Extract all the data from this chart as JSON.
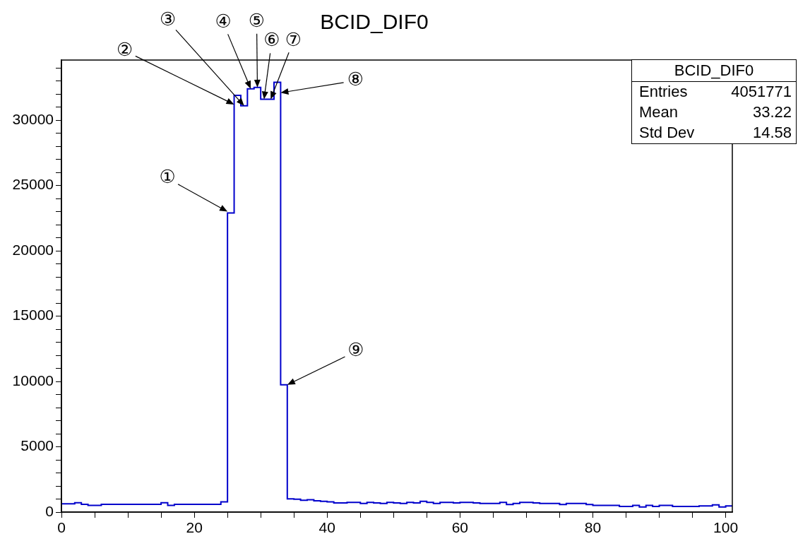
{
  "chart_data": {
    "type": "histogram",
    "title": "BCID_DIF0",
    "bins": [
      0,
      1,
      2,
      3,
      4,
      5,
      6,
      7,
      8,
      9,
      10,
      11,
      12,
      13,
      14,
      15,
      16,
      17,
      18,
      19,
      20,
      21,
      22,
      23,
      24,
      25,
      26,
      27,
      28,
      29,
      30,
      31,
      32,
      33,
      34,
      35,
      36,
      37,
      38,
      39,
      40,
      41,
      42,
      43,
      44,
      45,
      46,
      47,
      48,
      49,
      50,
      51,
      52,
      53,
      54,
      55,
      56,
      57,
      58,
      59,
      60,
      61,
      62,
      63,
      64,
      65,
      66,
      67,
      68,
      69,
      70,
      71,
      72,
      73,
      74,
      75,
      76,
      77,
      78,
      79,
      80,
      81,
      82,
      83,
      84,
      85,
      86,
      87,
      88,
      89,
      90,
      91,
      92,
      93,
      94,
      95,
      96,
      97,
      98,
      99,
      100,
      101
    ],
    "values": [
      630,
      630,
      710,
      590,
      510,
      510,
      590,
      590,
      590,
      590,
      590,
      590,
      590,
      590,
      590,
      710,
      510,
      590,
      590,
      590,
      590,
      590,
      590,
      590,
      790,
      22900,
      31900,
      31100,
      32400,
      32500,
      31600,
      31600,
      32900,
      9750,
      1020,
      980,
      900,
      940,
      870,
      830,
      790,
      700,
      700,
      740,
      740,
      660,
      740,
      700,
      660,
      740,
      700,
      660,
      740,
      700,
      820,
      740,
      660,
      740,
      740,
      700,
      740,
      740,
      700,
      660,
      660,
      660,
      740,
      580,
      660,
      740,
      740,
      700,
      660,
      660,
      660,
      580,
      660,
      660,
      660,
      580,
      510,
      510,
      510,
      510,
      430,
      430,
      510,
      390,
      510,
      430,
      510,
      510,
      430,
      430,
      430,
      430,
      470,
      470,
      550,
      390,
      470
    ],
    "color": "#0000cc",
    "xlim": [
      0,
      101
    ],
    "xticks": [
      0,
      {
        "value": 5,
        "label": null
      },
      {
        "value": 10,
        "label": null
      },
      {
        "value": 15,
        "label": null
      },
      20,
      {
        "value": 25,
        "label": null
      },
      {
        "value": 30,
        "label": null
      },
      {
        "value": 35,
        "label": null
      },
      40,
      {
        "value": 45,
        "label": null
      },
      {
        "value": 50,
        "label": null
      },
      {
        "value": 55,
        "label": null
      },
      60,
      {
        "value": 65,
        "label": null
      },
      {
        "value": 70,
        "label": null
      },
      {
        "value": 75,
        "label": null
      },
      80,
      {
        "value": 85,
        "label": null
      },
      {
        "value": 90,
        "label": null
      },
      {
        "value": 95,
        "label": null
      },
      100
    ],
    "ylim": [
      0,
      34600
    ],
    "yticks": [
      0,
      {
        "value": 1000,
        "label": null
      },
      {
        "value": 2000,
        "label": null
      },
      {
        "value": 3000,
        "label": null
      },
      {
        "value": 4000,
        "label": null
      },
      5000,
      {
        "value": 6000,
        "label": null
      },
      {
        "value": 7000,
        "label": null
      },
      {
        "value": 8000,
        "label": null
      },
      {
        "value": 9000,
        "label": null
      },
      10000,
      {
        "value": 11000,
        "label": null
      },
      {
        "value": 12000,
        "label": null
      },
      {
        "value": 13000,
        "label": null
      },
      {
        "value": 14000,
        "label": null
      },
      15000,
      {
        "value": 16000,
        "label": null
      },
      {
        "value": 17000,
        "label": null
      },
      {
        "value": 18000,
        "label": null
      },
      {
        "value": 19000,
        "label": null
      },
      20000,
      {
        "value": 21000,
        "label": null
      },
      {
        "value": 22000,
        "label": null
      },
      {
        "value": 23000,
        "label": null
      },
      {
        "value": 24000,
        "label": null
      },
      25000,
      {
        "value": 26000,
        "label": null
      },
      {
        "value": 27000,
        "label": null
      },
      {
        "value": 28000,
        "label": null
      },
      {
        "value": 29000,
        "label": null
      },
      30000,
      {
        "value": 31000,
        "label": null
      },
      {
        "value": 32000,
        "label": null
      },
      {
        "value": 33000,
        "label": null
      },
      {
        "value": 34000,
        "label": null
      }
    ],
    "grid": false,
    "legend": false,
    "annotations": [
      {
        "text": "①",
        "x": 25,
        "y": 23000
      },
      {
        "text": "②",
        "x": 26,
        "y": 31200
      },
      {
        "text": "③",
        "x": 27.5,
        "y": 31100
      },
      {
        "text": "④",
        "x": 28.5,
        "y": 32400
      },
      {
        "text": "⑤",
        "x": 29.5,
        "y": 32500
      },
      {
        "text": "⑥",
        "x": 30.5,
        "y": 31600
      },
      {
        "text": "⑦",
        "x": 31.5,
        "y": 31600
      },
      {
        "text": "⑧",
        "x": 33,
        "y": 32100
      },
      {
        "text": "⑨",
        "x": 34,
        "y": 9750
      },
      "BCID_DIF0",
      "Entries",
      "4051771",
      "Mean",
      "33.22",
      "Std Dev",
      "14.58"
    ]
  }
}
